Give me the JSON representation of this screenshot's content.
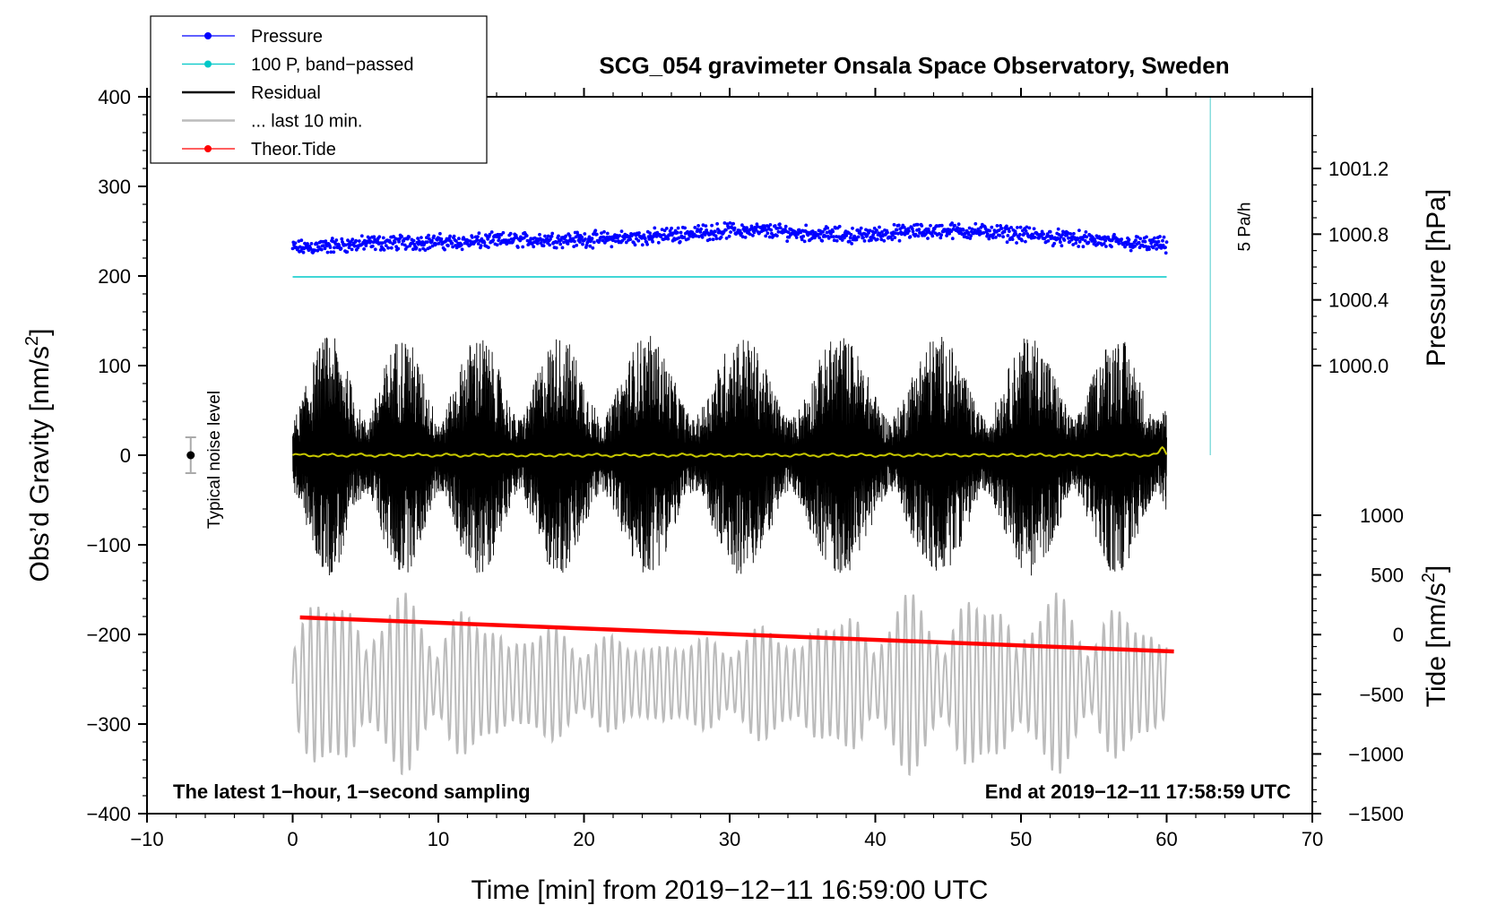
{
  "chart_data": {
    "type": "line",
    "title": "SCG_054 gravimeter Onsala Space Observatory, Sweden",
    "xlabel": "Time [min] from 2019−12−11 16:59:00 UTC",
    "ylabel_left_main": "Obs’d Gravity [nm/s",
    "ylabel_left_sup": "2",
    "ylabel_left_close": "]",
    "ylabel_right_pressure": "Pressure [hPa]",
    "ylabel_right_tide_main": "Tide [nm/s",
    "ylabel_right_tide_sup": "2",
    "ylabel_right_tide_close": "]",
    "xlim": [
      -10,
      70
    ],
    "ylim": [
      -400,
      400
    ],
    "x_ticks": [
      -10,
      0,
      10,
      20,
      30,
      40,
      50,
      60,
      70
    ],
    "x_tick_labels": [
      "−10",
      "0",
      "10",
      "20",
      "30",
      "40",
      "50",
      "60",
      "70"
    ],
    "y_ticks": [
      -400,
      -300,
      -200,
      -100,
      0,
      100,
      200,
      300,
      400
    ],
    "y_tick_labels": [
      "−400",
      "−300",
      "−200",
      "−100",
      "0",
      "100",
      "200",
      "300",
      "400"
    ],
    "pressure_axis": {
      "ticks": [
        1000.0,
        1000.4,
        1000.8,
        1001.2
      ],
      "tick_labels": [
        "1000.0",
        "1000.4",
        "1000.8",
        "1001.2"
      ],
      "range_on_gravity_scale": [
        1000.0,
        1001.2
      ],
      "gravity_at_low": 100,
      "gravity_at_high": 320
    },
    "tide_axis": {
      "ticks": [
        -1500,
        -1000,
        -500,
        0,
        500,
        1000
      ],
      "tick_labels": [
        "−1500",
        "−1000",
        "−500",
        "0",
        "500",
        "1000"
      ],
      "gravity_at_minus1500": -400,
      "gravity_at_1000": -67
    },
    "legend": [
      {
        "label": "Pressure",
        "color": "#0000ff",
        "style": "line-dot"
      },
      {
        "label": "100 P, band−passed",
        "color": "#00c8c8",
        "style": "line-dot"
      },
      {
        "label": "Residual",
        "color": "#000000",
        "style": "line"
      },
      {
        "label": "... last 10 min.",
        "color": "#bbbbbb",
        "style": "line"
      },
      {
        "label": "Theor.Tide",
        "color": "#ff0000",
        "style": "line-dot"
      }
    ],
    "series": [
      {
        "name": "Pressure",
        "color": "#0000ff",
        "x_range": [
          0,
          60
        ],
        "y_gravity_units": [
          231,
          234,
          237,
          238,
          238,
          240,
          241,
          241,
          243,
          247,
          251,
          250,
          247,
          245,
          249,
          251,
          249,
          245,
          241,
          237,
          234
        ],
        "scatter_amplitude": 8
      },
      {
        "name": "100 P, band−passed",
        "color": "#00c8c8",
        "x_range": [
          0,
          60
        ],
        "y_constant": 199
      },
      {
        "name": "Residual",
        "color": "#000000",
        "x_range": [
          0,
          60
        ],
        "mean": 0,
        "amplitude_max": 150,
        "amplitude_min": -150
      },
      {
        "name": "Residual smoothed",
        "color": "#c8c800",
        "x_range": [
          0,
          60
        ],
        "y_constant": 0,
        "end_bump": 8
      },
      {
        "name": "... last 10 min.",
        "color": "#bbbbbb",
        "x_range": [
          0,
          60
        ],
        "center": -255,
        "amplitude_max": 110
      },
      {
        "name": "Theor.Tide",
        "color": "#ff0000",
        "x": [
          0.5,
          60.5
        ],
        "y": [
          -181,
          -219
        ]
      }
    ],
    "pressure_rate_marker": {
      "x": 63,
      "y_top": 400,
      "y_bottom": 0,
      "color": "#88dddd",
      "label": "5 Pa/h"
    },
    "noise_indicator": {
      "x": -7,
      "y": 0,
      "error": 20,
      "label": "Typical noise level"
    },
    "note_left": "The latest 1−hour, 1−second sampling",
    "note_right": "End at 2019−12−11 17:58:59 UTC"
  }
}
